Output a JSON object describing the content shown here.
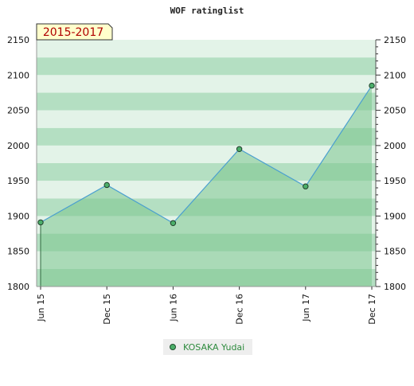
{
  "chart_data": {
    "type": "area",
    "title": "WOF ratinglist",
    "period_label": "2015-2017",
    "categories": [
      "Jun 15",
      "Dec 15",
      "Jun 16",
      "Dec 16",
      "Jun 17",
      "Dec 17"
    ],
    "series": [
      {
        "name": "KOSAKA Yudai",
        "values": [
          1891,
          1944,
          1890,
          1995,
          1942,
          2085
        ]
      }
    ],
    "ylim": [
      1800,
      2150
    ],
    "yticks": [
      1800,
      1850,
      1900,
      1950,
      2000,
      2050,
      2100,
      2150
    ],
    "grid": true,
    "legend_position": "bottom-center",
    "colors": {
      "line": "#4a9fd0",
      "area": "#7cc48e",
      "marker": "#4caf6a",
      "band_dark": "#b4dfc2",
      "band_light": "#e3f3e8"
    }
  }
}
